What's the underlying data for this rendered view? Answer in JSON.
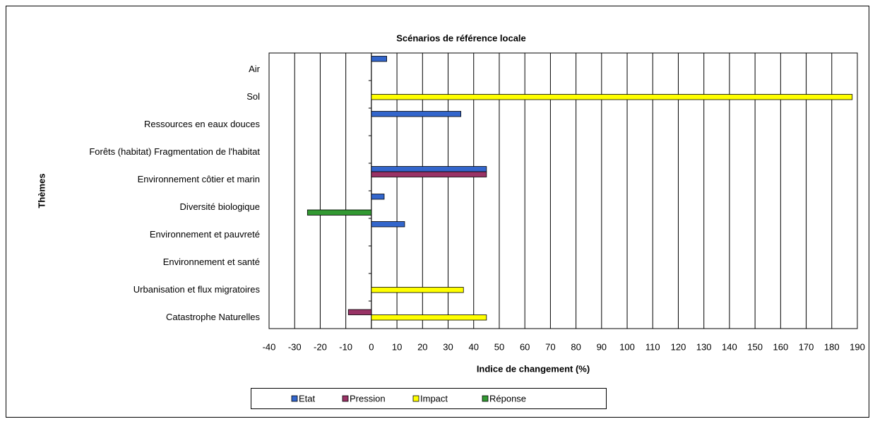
{
  "chart_data": {
    "type": "hbar",
    "title": "Scénarios de référence locale",
    "xlabel": "Indice de changement (%)",
    "ylabel": "Thèmes",
    "categories": [
      "Air",
      "Sol",
      "Ressources en eaux douces",
      "Forêts (habitat) Fragmentation de l'habitat",
      "Environnement côtier et marin",
      "Diversité biologique",
      "Environnement et pauvreté",
      "Environnement et santé",
      "Urbanisation et  flux migratoires",
      "Catastrophe Naturelles"
    ],
    "series": [
      {
        "name": "Etat",
        "color": "#3366cc",
        "values": [
          6,
          null,
          35,
          null,
          45,
          5,
          13,
          null,
          null,
          null
        ]
      },
      {
        "name": "Pression",
        "color": "#993366",
        "values": [
          null,
          null,
          null,
          null,
          45,
          null,
          null,
          null,
          null,
          -9
        ]
      },
      {
        "name": "Impact",
        "color": "#ffff00",
        "values": [
          null,
          188,
          null,
          null,
          null,
          null,
          null,
          null,
          36,
          45
        ]
      },
      {
        "name": "Réponse",
        "color": "#339933",
        "values": [
          null,
          null,
          null,
          null,
          null,
          -25,
          null,
          null,
          null,
          null
        ]
      }
    ],
    "xlim": [
      -40,
      190
    ],
    "xticks": [
      -40,
      -30,
      -20,
      -10,
      0,
      10,
      20,
      30,
      40,
      50,
      60,
      70,
      80,
      90,
      100,
      110,
      120,
      130,
      140,
      150,
      160,
      170,
      180,
      190
    ],
    "grid": true,
    "legend": "bottom"
  }
}
